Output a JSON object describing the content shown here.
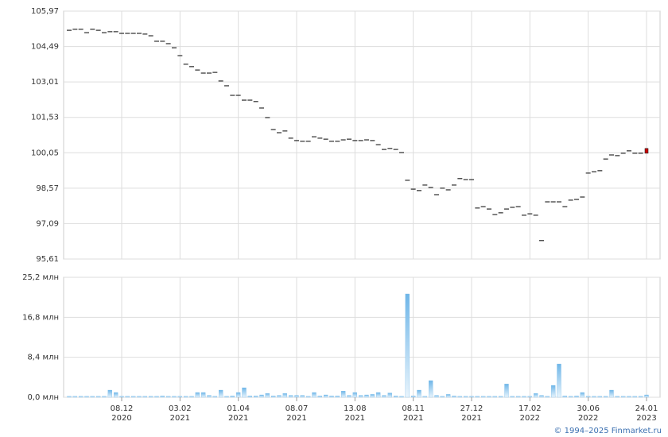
{
  "chart_data": [
    {
      "type": "candlestick",
      "color": "#000000",
      "last_color": "#cc0000",
      "values": [
        105.17,
        105.21,
        105.21,
        105.07,
        105.21,
        105.17,
        105.07,
        105.11,
        105.11,
        105.04,
        105.04,
        105.04,
        105.04,
        105.01,
        104.94,
        104.71,
        104.71,
        104.61,
        104.44,
        104.11,
        103.75,
        103.65,
        103.51,
        103.38,
        103.38,
        103.41,
        103.05,
        102.85,
        102.45,
        102.45,
        102.25,
        102.25,
        102.19,
        101.92,
        101.52,
        101.02,
        100.89,
        100.96,
        100.66,
        100.56,
        100.53,
        100.53,
        100.72,
        100.66,
        100.62,
        100.53,
        100.53,
        100.59,
        100.62,
        100.56,
        100.56,
        100.59,
        100.56,
        100.39,
        100.19,
        100.23,
        100.19,
        100.06,
        98.9,
        98.53,
        98.47,
        98.7,
        98.6,
        98.3,
        98.57,
        98.5,
        98.7,
        98.97,
        98.93,
        98.93,
        97.74,
        97.8,
        97.7,
        97.47,
        97.54,
        97.7,
        97.77,
        97.8,
        97.44,
        97.5,
        97.44,
        96.38,
        98.0,
        98.0,
        98.0,
        97.8,
        98.07,
        98.1,
        98.2,
        99.2,
        99.26,
        99.3,
        99.79,
        99.96,
        99.93,
        100.03,
        100.13,
        100.03,
        100.03,
        100.13
      ],
      "ylim": [
        95.61,
        105.97
      ],
      "yticks": [
        {
          "value": 95.61,
          "label": "95,61"
        },
        {
          "value": 97.09,
          "label": "97,09"
        },
        {
          "value": 98.57,
          "label": "98,57"
        },
        {
          "value": 100.05,
          "label": "100,05"
        },
        {
          "value": 101.53,
          "label": "101,53"
        },
        {
          "value": 103.01,
          "label": "103,01"
        },
        {
          "value": 104.49,
          "label": "104,49"
        },
        {
          "value": 105.97,
          "label": "105,97"
        }
      ],
      "grid": true
    },
    {
      "type": "bar",
      "color": "#6fb6e8",
      "categories": [
        null,
        null,
        null,
        null,
        null,
        null,
        null,
        null,
        null,
        "08.12 2020",
        null,
        null,
        null,
        null,
        null,
        null,
        null,
        null,
        null,
        "03.02 2021",
        null,
        null,
        null,
        null,
        null,
        null,
        null,
        null,
        null,
        "01.04 2021",
        null,
        null,
        null,
        null,
        null,
        null,
        null,
        null,
        null,
        "08.07 2021",
        null,
        null,
        null,
        null,
        null,
        null,
        null,
        null,
        null,
        "13.08 2021",
        null,
        null,
        null,
        null,
        null,
        null,
        null,
        null,
        null,
        "08.11 2021",
        null,
        null,
        null,
        null,
        null,
        null,
        null,
        null,
        null,
        "27.12 2021",
        null,
        null,
        null,
        null,
        null,
        null,
        null,
        null,
        null,
        "17.02 2022",
        null,
        null,
        null,
        null,
        null,
        null,
        null,
        null,
        null,
        "30.06 2022",
        null,
        null,
        null,
        null,
        null,
        null,
        null,
        null,
        null,
        "24.01 2023"
      ],
      "values": [
        0.2,
        0.2,
        0.2,
        0.2,
        0.2,
        0.2,
        0.2,
        1.5,
        1.0,
        0.2,
        0.2,
        0.2,
        0.2,
        0.2,
        0.2,
        0.2,
        0.3,
        0.2,
        0.2,
        0.2,
        0.2,
        0.2,
        1.0,
        1.0,
        0.4,
        0.2,
        1.5,
        0.2,
        0.3,
        1.0,
        2.0,
        0.3,
        0.3,
        0.5,
        0.8,
        0.3,
        0.4,
        0.8,
        0.4,
        0.4,
        0.4,
        0.2,
        1.0,
        0.3,
        0.5,
        0.3,
        0.3,
        1.3,
        0.4,
        1.0,
        0.4,
        0.5,
        0.6,
        1.0,
        0.4,
        0.9,
        0.3,
        0.2,
        21.7,
        0.3,
        1.5,
        0.2,
        3.5,
        0.4,
        0.2,
        0.6,
        0.3,
        0.2,
        0.2,
        0.2,
        0.2,
        0.2,
        0.2,
        0.2,
        0.2,
        2.8,
        0.2,
        0.2,
        0.2,
        0.2,
        0.8,
        0.4,
        0.2,
        2.5,
        7.0,
        0.3,
        0.2,
        0.3,
        1.0,
        0.2,
        0.2,
        0.2,
        0.2,
        1.5,
        0.2,
        0.2,
        0.2,
        0.2,
        0.2,
        0.5
      ],
      "ylim": [
        0,
        25.2
      ],
      "yticks": [
        {
          "value": 0,
          "label": "0,0 млн"
        },
        {
          "value": 8.4,
          "label": "8,4 млн"
        },
        {
          "value": 16.8,
          "label": "16,8 млн"
        },
        {
          "value": 25.2,
          "label": "25,2 млн"
        }
      ],
      "grid": true
    }
  ],
  "footer": "© 1994–2025 Finmarket.ru"
}
